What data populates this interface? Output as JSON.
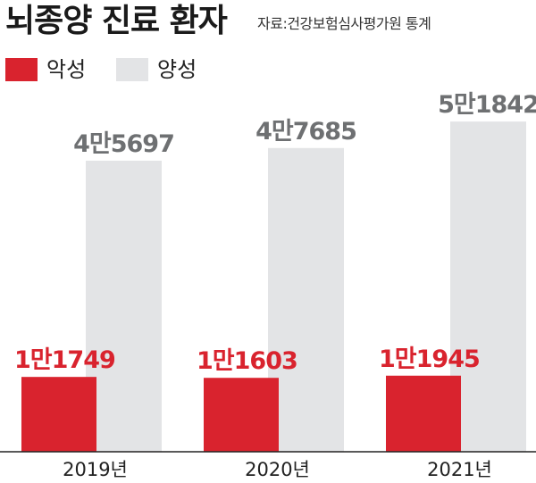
{
  "header": {
    "title": "뇌종양 진료 환자",
    "source": "자료:건강보험심사평가원 통계"
  },
  "colors": {
    "malignant": "#d9232e",
    "benign": "#e3e4e6",
    "benign_label": "#6e7072"
  },
  "chart_data": {
    "type": "bar",
    "title": "뇌종양 진료 환자",
    "categories": [
      "2019년",
      "2020년",
      "2021년"
    ],
    "series": [
      {
        "name": "악성",
        "values": [
          11749,
          11603,
          11945
        ],
        "labels": [
          "1만1749",
          "1만1603",
          "1만1945"
        ]
      },
      {
        "name": "양성",
        "values": [
          45697,
          47685,
          51842
        ],
        "labels": [
          "4만5697",
          "4만7685",
          "5만1842"
        ]
      }
    ],
    "legend": "top-left",
    "grid": false
  }
}
